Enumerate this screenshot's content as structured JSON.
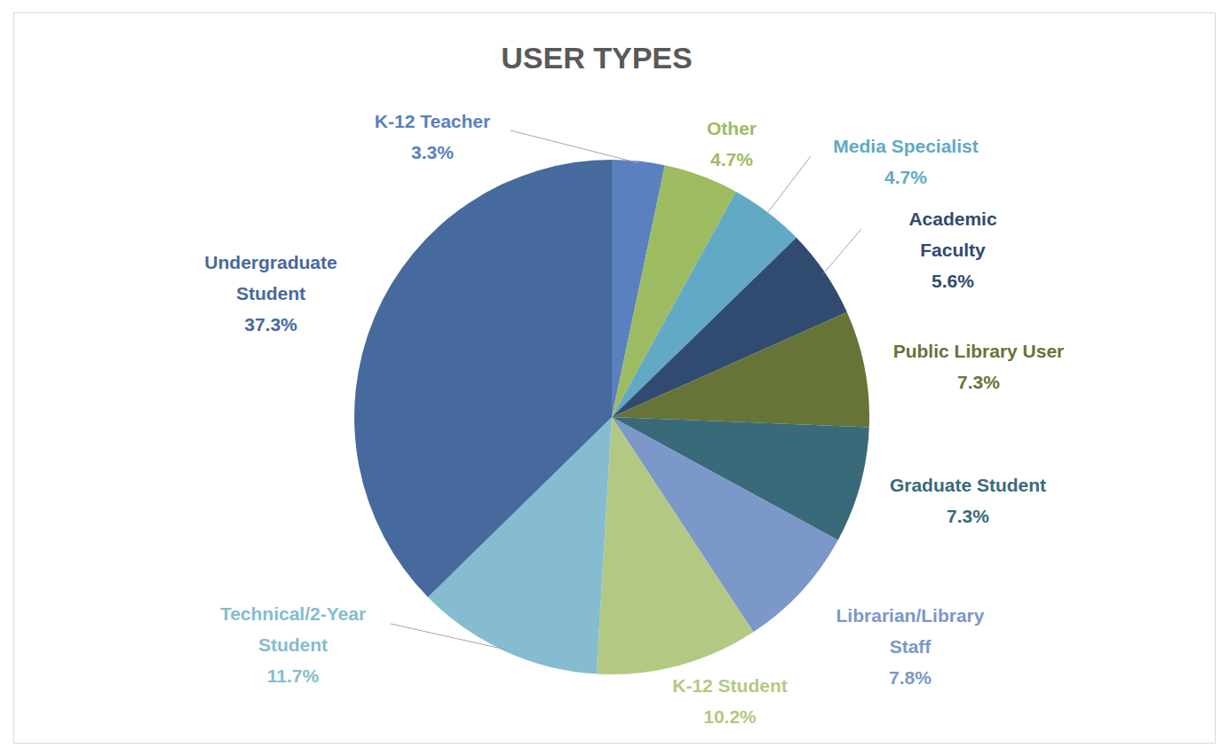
{
  "chart_data": {
    "type": "pie",
    "title": "USER TYPES",
    "categories": [
      "K-12 Teacher",
      "Other",
      "Media Specialist",
      "Academic Faculty",
      "Public Library User",
      "Graduate Student",
      "Librarian/Library Staff",
      "K-12 Student",
      "Technical/2-Year Student",
      "Undergraduate Student"
    ],
    "values": [
      3.3,
      4.7,
      4.7,
      5.6,
      7.3,
      7.3,
      7.8,
      10.2,
      11.7,
      37.3
    ],
    "value_labels": [
      "3.3%",
      "4.7%",
      "4.7%",
      "5.6%",
      "7.3%",
      "7.3%",
      "7.8%",
      "10.2%",
      "11.7%",
      "37.3%"
    ],
    "colors": [
      "#5a80bf",
      "#9dbb61",
      "#62a9c5",
      "#314a70",
      "#667437",
      "#386a7a",
      "#7b98c8",
      "#b3c983",
      "#85bccf",
      "#466a9d"
    ],
    "data_labels": true
  }
}
